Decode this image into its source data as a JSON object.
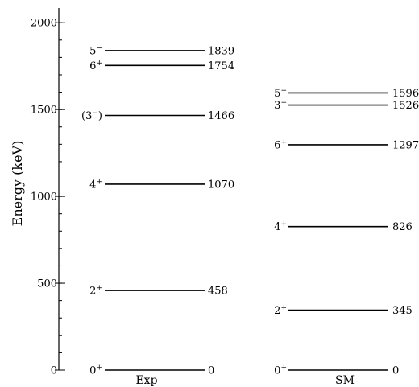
{
  "chart_data": {
    "type": "level-scheme",
    "ylabel": "Energy (keV)",
    "ylim": [
      0,
      2100
    ],
    "yticks": [
      0,
      500,
      1000,
      1500,
      2000
    ],
    "ytick_labels": [
      "0",
      "500",
      "1000",
      "1500",
      "2000"
    ],
    "minor_tick_step": 100,
    "columns": [
      {
        "name": "Exp",
        "levels": [
          {
            "energy": 0,
            "spin": "0",
            "parity": "+",
            "prefix": "",
            "suffix": "",
            "label": "0"
          },
          {
            "energy": 458,
            "spin": "2",
            "parity": "+",
            "prefix": "",
            "suffix": "",
            "label": "458"
          },
          {
            "energy": 1070,
            "spin": "4",
            "parity": "+",
            "prefix": "",
            "suffix": "",
            "label": "1070"
          },
          {
            "energy": 1466,
            "spin": "3",
            "parity": "−",
            "prefix": "(",
            "suffix": ")",
            "label": "1466"
          },
          {
            "energy": 1754,
            "spin": "6",
            "parity": "+",
            "prefix": "",
            "suffix": "",
            "label": "1754"
          },
          {
            "energy": 1839,
            "spin": "5",
            "parity": "−",
            "prefix": "",
            "suffix": "",
            "label": "1839"
          }
        ]
      },
      {
        "name": "SM",
        "levels": [
          {
            "energy": 0,
            "spin": "0",
            "parity": "+",
            "prefix": "",
            "suffix": "",
            "label": "0"
          },
          {
            "energy": 345,
            "spin": "2",
            "parity": "+",
            "prefix": "",
            "suffix": "",
            "label": "345"
          },
          {
            "energy": 826,
            "spin": "4",
            "parity": "+",
            "prefix": "",
            "suffix": "",
            "label": "826"
          },
          {
            "energy": 1297,
            "spin": "6",
            "parity": "+",
            "prefix": "",
            "suffix": "",
            "label": "1297"
          },
          {
            "energy": 1526,
            "spin": "3",
            "parity": "−",
            "prefix": "",
            "suffix": "",
            "label": "1526"
          },
          {
            "energy": 1596,
            "spin": "5",
            "parity": "−",
            "prefix": "",
            "suffix": "",
            "label": "1596"
          }
        ]
      }
    ]
  }
}
